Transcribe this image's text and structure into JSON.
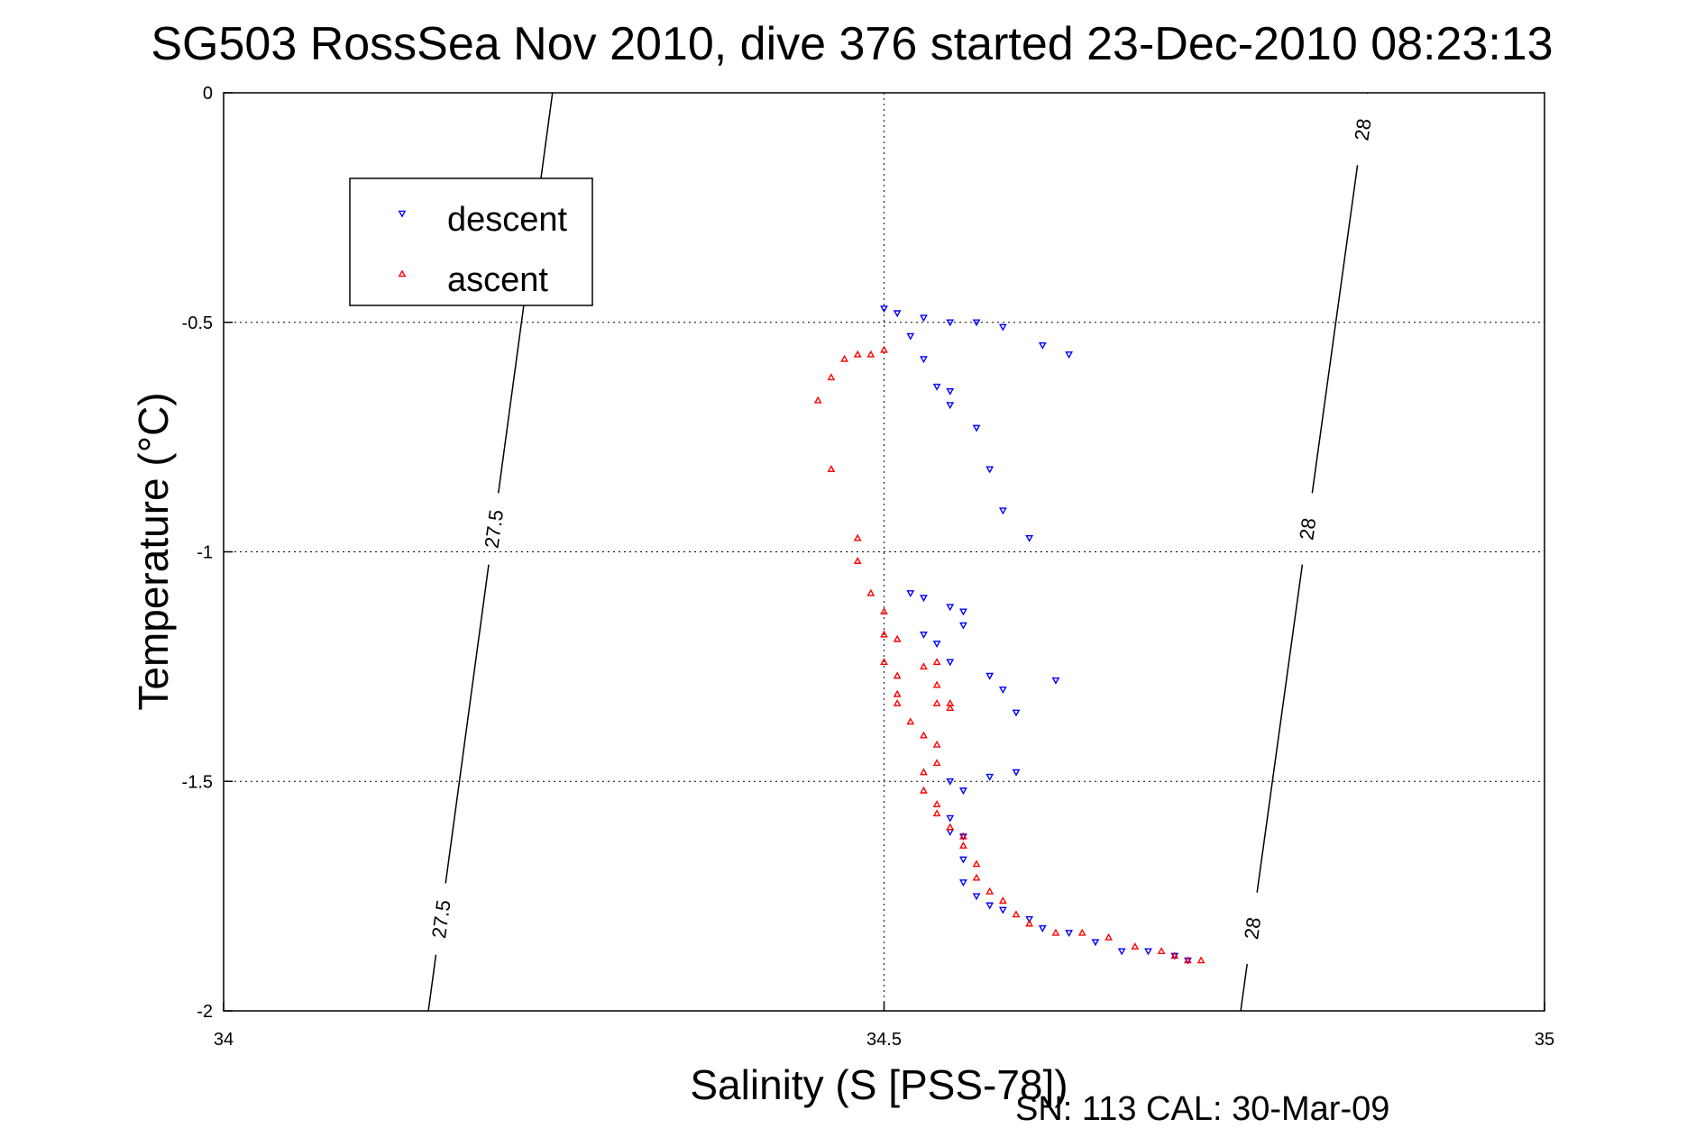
{
  "chart_data": {
    "type": "scatter",
    "title": "SG503 RossSea Nov 2010, dive 376 started 23-Dec-2010 08:23:13",
    "xlabel": "Salinity (S [PSS-78])",
    "ylabel": "Temperature (°C)",
    "xlim": [
      34,
      35
    ],
    "ylim": [
      -2,
      0
    ],
    "xticks": [
      34,
      34.5,
      35
    ],
    "xtick_labels": [
      "34",
      "34.5",
      "35"
    ],
    "yticks": [
      0,
      -0.5,
      -1,
      -1.5,
      -2
    ],
    "ytick_labels": [
      "0",
      "-0.5",
      "-1",
      "-1.5",
      "-2"
    ],
    "grid": true,
    "legend_position": "upper-left",
    "footer": "SN: 113  CAL: 30-Mar-09",
    "density_contours": [
      {
        "label": "27.5",
        "points": [
          [
            34.155,
            -2
          ],
          [
            34.249,
            0
          ]
        ],
        "label_positions": [
          [
            34.165,
            -1.8
          ],
          [
            34.2,
            -0.95
          ]
        ]
      },
      {
        "label": "28",
        "points": [
          [
            34.77,
            -2
          ],
          [
            34.866,
            0
          ]
        ],
        "label_positions": [
          [
            34.78,
            -1.82
          ],
          [
            34.82,
            -0.95
          ],
          [
            34.87,
            -0.08
          ]
        ]
      }
    ],
    "series": [
      {
        "name": "descent",
        "marker": "triangle-down",
        "color": "#0000ff",
        "points": [
          [
            34.5,
            -0.47
          ],
          [
            34.51,
            -0.48
          ],
          [
            34.53,
            -0.49
          ],
          [
            34.55,
            -0.5
          ],
          [
            34.57,
            -0.5
          ],
          [
            34.59,
            -0.51
          ],
          [
            34.62,
            -0.55
          ],
          [
            34.64,
            -0.57
          ],
          [
            34.52,
            -0.53
          ],
          [
            34.53,
            -0.58
          ],
          [
            34.54,
            -0.64
          ],
          [
            34.55,
            -0.65
          ],
          [
            34.55,
            -0.68
          ],
          [
            34.57,
            -0.73
          ],
          [
            34.58,
            -0.82
          ],
          [
            34.59,
            -0.91
          ],
          [
            34.61,
            -0.97
          ],
          [
            34.52,
            -1.09
          ],
          [
            34.53,
            -1.1
          ],
          [
            34.55,
            -1.12
          ],
          [
            34.56,
            -1.13
          ],
          [
            34.56,
            -1.16
          ],
          [
            34.53,
            -1.18
          ],
          [
            34.54,
            -1.2
          ],
          [
            34.55,
            -1.24
          ],
          [
            34.58,
            -1.27
          ],
          [
            34.59,
            -1.3
          ],
          [
            34.63,
            -1.28
          ],
          [
            34.6,
            -1.35
          ],
          [
            34.55,
            -1.5
          ],
          [
            34.56,
            -1.52
          ],
          [
            34.58,
            -1.49
          ],
          [
            34.6,
            -1.48
          ],
          [
            34.55,
            -1.58
          ],
          [
            34.55,
            -1.61
          ],
          [
            34.56,
            -1.62
          ],
          [
            34.56,
            -1.67
          ],
          [
            34.56,
            -1.72
          ],
          [
            34.57,
            -1.75
          ],
          [
            34.58,
            -1.77
          ],
          [
            34.59,
            -1.78
          ],
          [
            34.61,
            -1.8
          ],
          [
            34.62,
            -1.82
          ],
          [
            34.64,
            -1.83
          ],
          [
            34.66,
            -1.85
          ],
          [
            34.68,
            -1.87
          ],
          [
            34.7,
            -1.87
          ],
          [
            34.72,
            -1.88
          ],
          [
            34.73,
            -1.89
          ]
        ]
      },
      {
        "name": "ascent",
        "marker": "triangle-up",
        "color": "#ff0000",
        "points": [
          [
            34.47,
            -0.58
          ],
          [
            34.48,
            -0.57
          ],
          [
            34.49,
            -0.57
          ],
          [
            34.5,
            -0.56
          ],
          [
            34.46,
            -0.62
          ],
          [
            34.45,
            -0.67
          ],
          [
            34.46,
            -0.82
          ],
          [
            34.48,
            -0.97
          ],
          [
            34.48,
            -1.02
          ],
          [
            34.49,
            -1.09
          ],
          [
            34.5,
            -1.13
          ],
          [
            34.5,
            -1.18
          ],
          [
            34.51,
            -1.19
          ],
          [
            34.5,
            -1.24
          ],
          [
            34.51,
            -1.27
          ],
          [
            34.51,
            -1.31
          ],
          [
            34.51,
            -1.33
          ],
          [
            34.53,
            -1.25
          ],
          [
            34.54,
            -1.24
          ],
          [
            34.54,
            -1.29
          ],
          [
            34.54,
            -1.33
          ],
          [
            34.55,
            -1.34
          ],
          [
            34.52,
            -1.37
          ],
          [
            34.53,
            -1.4
          ],
          [
            34.54,
            -1.42
          ],
          [
            34.54,
            -1.46
          ],
          [
            34.55,
            -1.33
          ],
          [
            34.53,
            -1.48
          ],
          [
            34.53,
            -1.52
          ],
          [
            34.54,
            -1.55
          ],
          [
            34.54,
            -1.57
          ],
          [
            34.55,
            -1.6
          ],
          [
            34.56,
            -1.62
          ],
          [
            34.56,
            -1.64
          ],
          [
            34.57,
            -1.68
          ],
          [
            34.57,
            -1.71
          ],
          [
            34.58,
            -1.74
          ],
          [
            34.59,
            -1.76
          ],
          [
            34.6,
            -1.79
          ],
          [
            34.61,
            -1.81
          ],
          [
            34.63,
            -1.83
          ],
          [
            34.65,
            -1.83
          ],
          [
            34.67,
            -1.84
          ],
          [
            34.69,
            -1.86
          ],
          [
            34.71,
            -1.87
          ],
          [
            34.72,
            -1.88
          ],
          [
            34.73,
            -1.89
          ],
          [
            34.74,
            -1.89
          ]
        ]
      }
    ]
  }
}
